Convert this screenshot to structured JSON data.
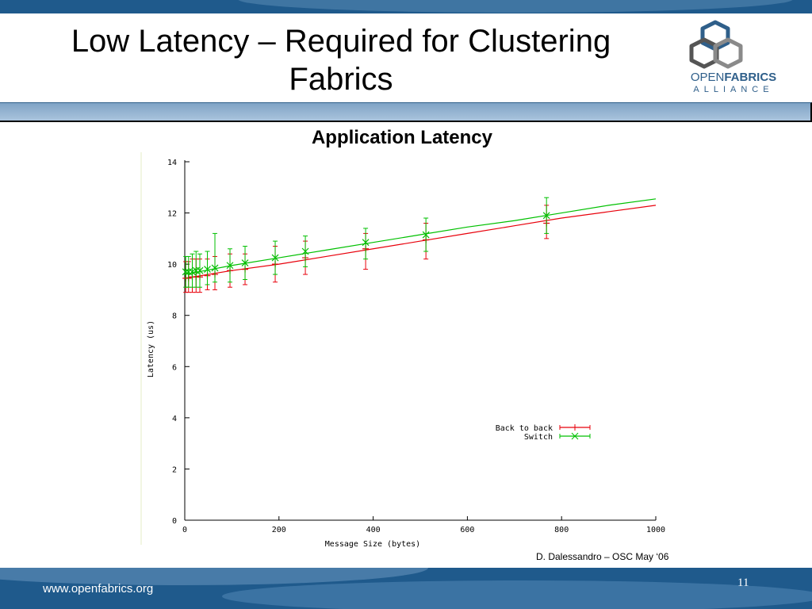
{
  "slide": {
    "title": "Low Latency – Required for Clustering Fabrics",
    "footer_url": "www.openfabrics.org",
    "page_number": "11",
    "credit": "D. Dalessandro – OSC  May ‘06"
  },
  "logo": {
    "text_open": "OPEN",
    "text_fabrics": "FABRICS",
    "text_alliance": "ALLIANCE",
    "icon": "hexagon-cube-icon"
  },
  "colors": {
    "brand_blue": "#1f5a8c",
    "back_to_back": "#e8000b",
    "switch": "#00c000"
  },
  "chart_data": {
    "type": "line",
    "title": "Application Latency",
    "xlabel": "Message Size (bytes)",
    "ylabel": "Latency (us)",
    "xlim": [
      0,
      1000
    ],
    "ylim": [
      0,
      14
    ],
    "x_ticks": [
      "0",
      "200",
      "400",
      "600",
      "800",
      "1000"
    ],
    "y_ticks": [
      "0",
      "2",
      "4",
      "6",
      "8",
      "10",
      "12",
      "14"
    ],
    "legend_position": "center-right",
    "grid": false,
    "series": [
      {
        "name": "Back to back",
        "color": "#e8000b",
        "marker": "+",
        "line": {
          "x": [
            0,
            100,
            200,
            300,
            400,
            500,
            600,
            700,
            800,
            900,
            1000
          ],
          "y": [
            9.45,
            9.75,
            10.0,
            10.3,
            10.6,
            10.9,
            11.2,
            11.5,
            11.8,
            12.05,
            12.3
          ]
        },
        "points": [
          {
            "x": 2,
            "y": 9.45,
            "lo": 8.9,
            "hi": 10.1
          },
          {
            "x": 8,
            "y": 9.45,
            "lo": 8.9,
            "hi": 10.1
          },
          {
            "x": 16,
            "y": 9.5,
            "lo": 8.9,
            "hi": 10.2
          },
          {
            "x": 24,
            "y": 9.5,
            "lo": 8.9,
            "hi": 10.2
          },
          {
            "x": 32,
            "y": 9.5,
            "lo": 8.9,
            "hi": 10.2
          },
          {
            "x": 48,
            "y": 9.55,
            "lo": 9.0,
            "hi": 10.2
          },
          {
            "x": 64,
            "y": 9.6,
            "lo": 9.0,
            "hi": 10.3
          },
          {
            "x": 96,
            "y": 9.75,
            "lo": 9.1,
            "hi": 10.4
          },
          {
            "x": 128,
            "y": 9.8,
            "lo": 9.2,
            "hi": 10.4
          },
          {
            "x": 192,
            "y": 10.0,
            "lo": 9.3,
            "hi": 10.7
          },
          {
            "x": 256,
            "y": 10.25,
            "lo": 9.6,
            "hi": 10.9
          },
          {
            "x": 384,
            "y": 10.6,
            "lo": 9.8,
            "hi": 11.2
          },
          {
            "x": 512,
            "y": 10.95,
            "lo": 10.2,
            "hi": 11.6
          },
          {
            "x": 768,
            "y": 11.6,
            "lo": 11.0,
            "hi": 12.3
          }
        ]
      },
      {
        "name": "Switch",
        "color": "#00c000",
        "marker": "x",
        "line": {
          "x": [
            0,
            100,
            200,
            300,
            400,
            500,
            600,
            700,
            800,
            900,
            1000
          ],
          "y": [
            9.6,
            9.95,
            10.25,
            10.55,
            10.85,
            11.15,
            11.45,
            11.7,
            12.0,
            12.3,
            12.55
          ]
        },
        "points": [
          {
            "x": 2,
            "y": 9.7,
            "lo": 9.1,
            "hi": 10.3
          },
          {
            "x": 8,
            "y": 9.7,
            "lo": 9.1,
            "hi": 10.3
          },
          {
            "x": 16,
            "y": 9.7,
            "lo": 9.1,
            "hi": 10.4
          },
          {
            "x": 24,
            "y": 9.75,
            "lo": 9.1,
            "hi": 10.5
          },
          {
            "x": 32,
            "y": 9.75,
            "lo": 9.1,
            "hi": 10.4
          },
          {
            "x": 48,
            "y": 9.8,
            "lo": 9.2,
            "hi": 10.5
          },
          {
            "x": 64,
            "y": 9.85,
            "lo": 9.3,
            "hi": 11.2
          },
          {
            "x": 96,
            "y": 9.95,
            "lo": 9.3,
            "hi": 10.6
          },
          {
            "x": 128,
            "y": 10.05,
            "lo": 9.4,
            "hi": 10.7
          },
          {
            "x": 192,
            "y": 10.25,
            "lo": 9.6,
            "hi": 10.9
          },
          {
            "x": 256,
            "y": 10.5,
            "lo": 9.9,
            "hi": 11.1
          },
          {
            "x": 384,
            "y": 10.85,
            "lo": 10.2,
            "hi": 11.4
          },
          {
            "x": 512,
            "y": 11.15,
            "lo": 10.5,
            "hi": 11.8
          },
          {
            "x": 768,
            "y": 11.9,
            "lo": 11.2,
            "hi": 12.6
          }
        ]
      }
    ]
  }
}
